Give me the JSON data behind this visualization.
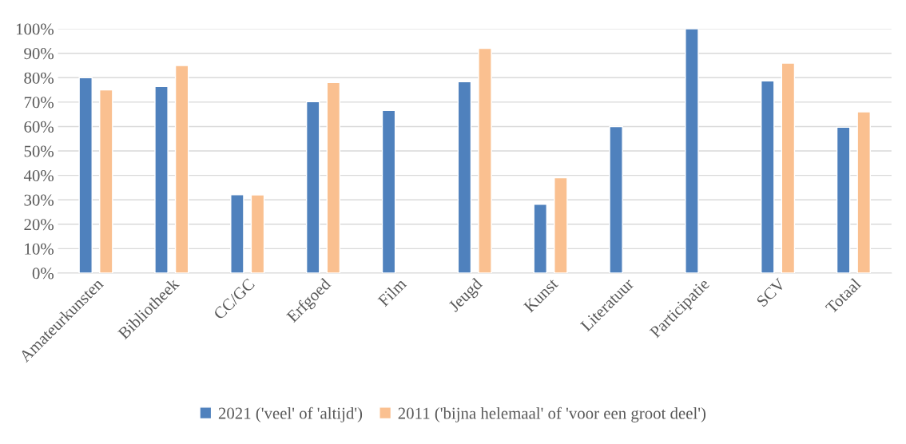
{
  "chart_data": {
    "type": "bar",
    "categories": [
      "Amateurkunsten",
      "Bibliotheek",
      "CC/GC",
      "Erfgoed",
      "Film",
      "Jeugd",
      "Kunst",
      "Literatuur",
      "Participatie",
      "SCV",
      "Totaal"
    ],
    "series": [
      {
        "name": "2021 ('veel' of 'altijd')",
        "color": "#4f81bd",
        "values": [
          80,
          76.4,
          32.1,
          70.2,
          66.6,
          78.4,
          28.2,
          60,
          100,
          78.7,
          59.7
        ]
      },
      {
        "name": "2011 ('bijna helemaal' of 'voor een groot deel')",
        "color": "#fac090",
        "values": [
          75,
          85,
          32,
          78,
          null,
          92,
          39,
          null,
          null,
          86,
          66
        ]
      }
    ],
    "ylim": [
      0,
      100
    ],
    "yticks": [
      {
        "value": 0,
        "label": "0%"
      },
      {
        "value": 10,
        "label": "10%"
      },
      {
        "value": 20,
        "label": "20%"
      },
      {
        "value": 30,
        "label": "30%"
      },
      {
        "value": 40,
        "label": "40%"
      },
      {
        "value": 50,
        "label": "50%"
      },
      {
        "value": 60,
        "label": "60%"
      },
      {
        "value": 70,
        "label": "70%"
      },
      {
        "value": 80,
        "label": "80%"
      },
      {
        "value": 90,
        "label": "90%"
      },
      {
        "value": 100,
        "label": "100%"
      }
    ],
    "grid": "y",
    "legend": "bottom"
  }
}
